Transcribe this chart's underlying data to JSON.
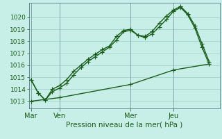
{
  "title": "Pression niveau de la mer( hPa )",
  "background_color": "#c8eee8",
  "grid_color": "#a0d4c8",
  "line_color": "#1a5c1a",
  "ylim": [
    1012.4,
    1021.2
  ],
  "yticks": [
    1013,
    1014,
    1015,
    1016,
    1017,
    1018,
    1019,
    1020
  ],
  "xtick_labels": [
    "Mar",
    "Ven",
    "Mer",
    "Jeu"
  ],
  "xtick_positions": [
    0,
    4,
    14,
    20
  ],
  "xlim": [
    -0.3,
    26.5
  ],
  "vline_positions": [
    0,
    4,
    14,
    20
  ],
  "line1_x": [
    0,
    1,
    2,
    3,
    4,
    5,
    6,
    7,
    8,
    9,
    10,
    11,
    12,
    13,
    14,
    15,
    16,
    17,
    18,
    19,
    20,
    21,
    22,
    23,
    24,
    25
  ],
  "line1_y": [
    1014.8,
    1013.7,
    1013.1,
    1013.8,
    1014.1,
    1014.5,
    1015.2,
    1015.8,
    1016.3,
    1016.7,
    1017.1,
    1017.5,
    1018.1,
    1018.8,
    1018.9,
    1018.5,
    1018.3,
    1018.6,
    1019.2,
    1019.8,
    1020.5,
    1020.8,
    1020.2,
    1019.1,
    1017.5,
    1016.1
  ],
  "line2_x": [
    0,
    1,
    2,
    3,
    4,
    5,
    6,
    7,
    8,
    9,
    10,
    11,
    12,
    13,
    14,
    15,
    16,
    17,
    18,
    19,
    20,
    21,
    22,
    23,
    24,
    25
  ],
  "line2_y": [
    1014.8,
    1013.7,
    1013.1,
    1014.0,
    1014.3,
    1014.8,
    1015.5,
    1016.0,
    1016.5,
    1016.9,
    1017.3,
    1017.6,
    1018.4,
    1018.9,
    1019.0,
    1018.5,
    1018.4,
    1018.8,
    1019.5,
    1020.1,
    1020.6,
    1020.9,
    1020.3,
    1019.3,
    1017.8,
    1016.3
  ],
  "line3_x": [
    0,
    4,
    14,
    20,
    25
  ],
  "line3_y": [
    1013.0,
    1013.3,
    1014.4,
    1015.6,
    1016.1
  ],
  "marker": "+",
  "markersize": 4,
  "linewidth": 1.0
}
